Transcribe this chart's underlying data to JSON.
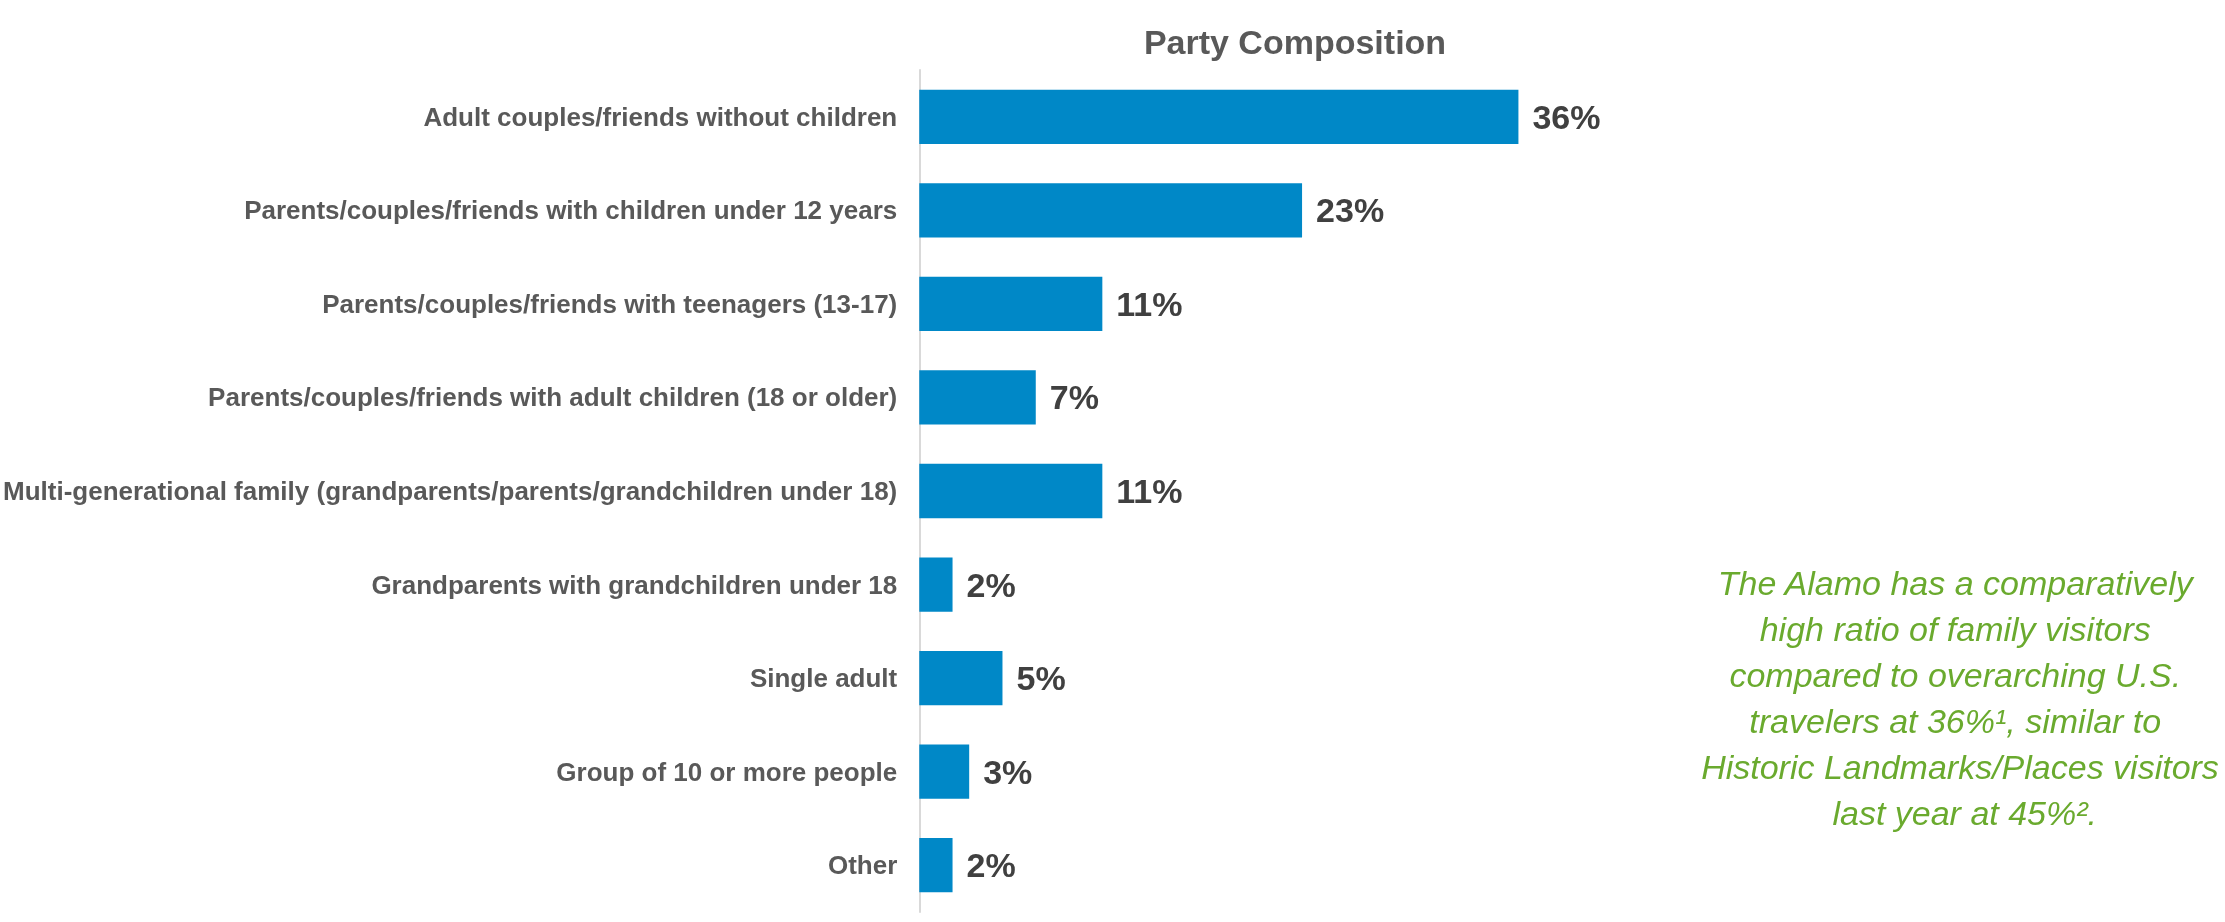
{
  "chart_data": {
    "type": "bar",
    "orientation": "horizontal",
    "title": "Party Composition",
    "categories": [
      "Adult couples/friends without children",
      "Parents/couples/friends with children under 12 years",
      "Parents/couples/friends with teenagers (13-17)",
      "Parents/couples/friends with adult children (18 or older)",
      "Multi-generational family (grandparents/parents/grandchildren under 18)",
      "Grandparents with grandchildren under 18",
      "Single adult",
      "Group of 10 or more people",
      "Other"
    ],
    "values": [
      36,
      23,
      11,
      7,
      11,
      2,
      5,
      3,
      2
    ],
    "value_labels": [
      "36%",
      "23%",
      "11%",
      "7%",
      "11%",
      "2%",
      "5%",
      "3%",
      "2%"
    ],
    "color": "#0088c7",
    "annotations": [
      "The Alamo has a comparatively high ratio of family visitors compared to overarching U.S. travelers at 36%¹, similar to Historic Landmarks/Places visitors last year at 45%²."
    ]
  }
}
